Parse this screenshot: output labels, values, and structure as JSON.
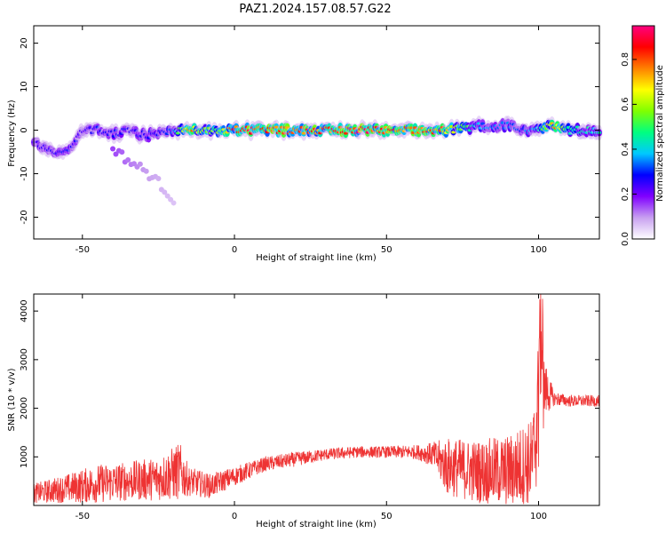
{
  "figure_title": "PAZ1.2024.157.08.57.G22",
  "chart_data": [
    {
      "type": "heatmap",
      "title": "PAZ1.2024.157.08.57.G22",
      "xlabel": "Height of straight line (km)",
      "ylabel": "Frequency (Hz)",
      "xlim": [
        -66,
        120
      ],
      "ylim": [
        -25,
        24
      ],
      "xticks": [
        -50,
        0,
        50,
        100
      ],
      "yticks": [
        -20,
        -10,
        0,
        10,
        20
      ],
      "colorbar": {
        "label": "Normalized spectral amplitude",
        "range": [
          0.0,
          0.95
        ],
        "ticks": [
          0.0,
          0.2,
          0.4,
          0.6,
          0.8
        ],
        "colormap": [
          "#ffffff",
          "#c8a0f0",
          "#8000ff",
          "#0000ff",
          "#00c8ff",
          "#00ff80",
          "#80ff00",
          "#ffff00",
          "#ff8000",
          "#ff0000",
          "#ff0080"
        ]
      },
      "ridge": {
        "x": [
          -65,
          -60,
          -55,
          -50,
          -45,
          -40,
          -35,
          -30,
          -25,
          -20,
          -15,
          -10,
          -5,
          0,
          10,
          20,
          30,
          40,
          50,
          60,
          70,
          80,
          90,
          95,
          100,
          105,
          110,
          120
        ],
        "y": [
          -3,
          -5,
          -5,
          0,
          0,
          -1,
          0,
          -1,
          -1,
          0,
          0,
          0,
          0,
          0,
          0,
          0,
          0,
          0,
          0,
          0,
          0,
          1,
          1,
          0,
          0,
          1,
          0,
          0
        ],
        "amplitude": [
          0.25,
          0.3,
          0.3,
          0.25,
          0.3,
          0.3,
          0.3,
          0.3,
          0.3,
          0.4,
          0.85,
          0.6,
          0.6,
          0.9,
          0.9,
          0.9,
          0.9,
          0.95,
          0.9,
          0.9,
          0.8,
          0.4,
          0.35,
          0.35,
          0.45,
          0.85,
          0.5,
          0.45
        ]
      },
      "secondary_branch": {
        "x": [
          -40,
          -35,
          -30,
          -25,
          -20
        ],
        "y": [
          -4,
          -7,
          -9,
          -12,
          -16
        ],
        "amplitude": [
          0.15,
          0.12,
          0.1,
          0.08,
          0.06
        ]
      }
    },
    {
      "type": "line",
      "xlabel": "Height of straight line (km)",
      "ylabel": "SNR (10 * v/v)",
      "xlim": [
        -66,
        120
      ],
      "ylim": [
        0,
        4350
      ],
      "xticks": [
        -50,
        0,
        50,
        100
      ],
      "yticks": [
        1000,
        2000,
        3000,
        4000
      ],
      "series": [
        {
          "color": "#ee3333",
          "envelope_x": [
            -66,
            -55,
            -45,
            -35,
            -25,
            -18,
            -15,
            -8,
            0,
            10,
            20,
            30,
            40,
            50,
            60,
            65,
            70,
            80,
            90,
            98,
            100,
            102,
            105,
            110,
            120
          ],
          "envelope_mean": [
            250,
            350,
            450,
            500,
            550,
            700,
            500,
            400,
            600,
            850,
            950,
            1050,
            1100,
            1100,
            1100,
            1050,
            800,
            700,
            700,
            900,
            2000,
            2400,
            2200,
            2150,
            2150
          ],
          "envelope_spread": [
            200,
            300,
            400,
            400,
            450,
            600,
            300,
            250,
            200,
            150,
            150,
            120,
            120,
            120,
            150,
            250,
            600,
            650,
            750,
            900,
            1500,
            600,
            150,
            120,
            120
          ]
        }
      ]
    }
  ]
}
